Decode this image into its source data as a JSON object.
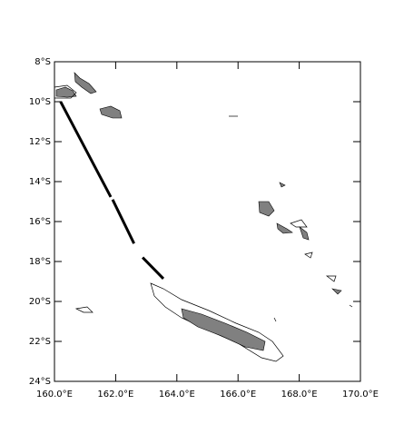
{
  "chart_data": {
    "type": "track-map",
    "xlim": [
      160,
      170
    ],
    "ylim": [
      -24,
      -8
    ],
    "xticks": [
      {
        "value": 160,
        "label": "160.0°E"
      },
      {
        "value": 162,
        "label": "162.0°E"
      },
      {
        "value": 164,
        "label": "164.0°E"
      },
      {
        "value": 166,
        "label": "166.0°E"
      },
      {
        "value": 168,
        "label": "168.0°E"
      },
      {
        "value": 170,
        "label": "170.0°E"
      }
    ],
    "yticks": [
      {
        "value": -8,
        "label": "8°S"
      },
      {
        "value": -10,
        "label": "10°S"
      },
      {
        "value": -12,
        "label": "12°S"
      },
      {
        "value": -14,
        "label": "14°S"
      },
      {
        "value": -16,
        "label": "16°S"
      },
      {
        "value": -18,
        "label": "18°S"
      },
      {
        "value": -20,
        "label": "20°S"
      },
      {
        "value": -22,
        "label": "22°S"
      },
      {
        "value": -24,
        "label": "24°S"
      }
    ],
    "series": [
      {
        "color": "#000000",
        "x": [
          160.2,
          161.84,
          null,
          161.9,
          162.6,
          null,
          162.88,
          163.56
        ],
        "y": [
          -10.0,
          -14.77,
          null,
          -14.9,
          -17.1,
          null,
          -17.8,
          -18.86
        ]
      }
    ]
  }
}
